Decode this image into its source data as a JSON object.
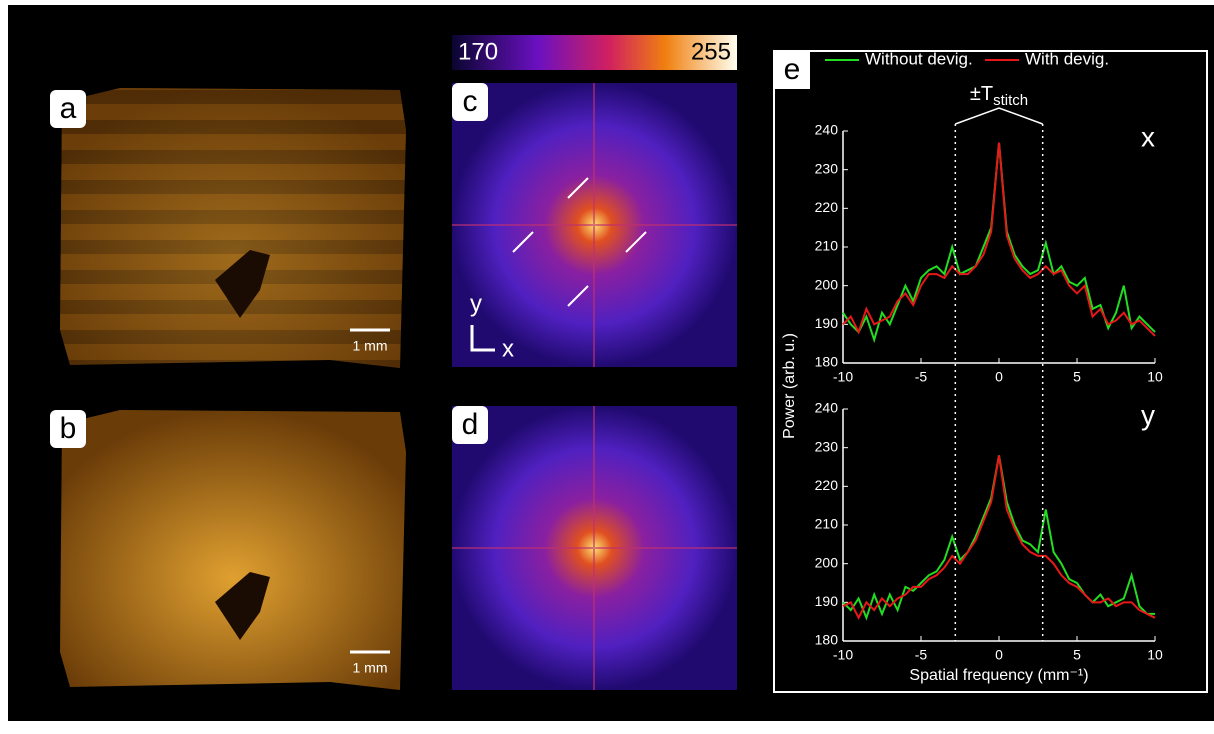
{
  "panel_labels": [
    "a",
    "b",
    "c",
    "d",
    "e"
  ],
  "scale_bars": [
    "1 mm",
    "1 mm"
  ],
  "axes_indicator": {
    "y": "y",
    "x": "x"
  },
  "colorbar": {
    "lim": [
      170,
      255
    ]
  },
  "stitch": {
    "text": "±T",
    "sub": "stitch",
    "positions": [
      -2.8,
      2.8
    ]
  },
  "ylabel": "Power (arb. u.)",
  "chart_data": [
    {
      "type": "line",
      "title": "x",
      "x": [
        -10,
        -9.5,
        -9,
        -8.5,
        -8,
        -7.5,
        -7,
        -6.5,
        -6,
        -5.5,
        -5,
        -4.5,
        -4,
        -3.5,
        -3,
        -2.5,
        -2,
        -1.5,
        -1,
        -0.5,
        0,
        0.5,
        1,
        1.5,
        2,
        2.5,
        3,
        3.5,
        4,
        4.5,
        5,
        5.5,
        6,
        6.5,
        7,
        7.5,
        8,
        8.5,
        9,
        9.5,
        10
      ],
      "series": [
        {
          "name": "Without devig.",
          "color": "#22dd22",
          "values": [
            193,
            190,
            188,
            192,
            186,
            193,
            190,
            195,
            200,
            196,
            202,
            204,
            205,
            203,
            210,
            203,
            204,
            205,
            210,
            215,
            237,
            214,
            208,
            205,
            203,
            204,
            211,
            203,
            205,
            201,
            200,
            202,
            194,
            195,
            189,
            193,
            200,
            189,
            192,
            190,
            188
          ]
        },
        {
          "name": "With devig.",
          "color": "#e81818",
          "values": [
            190,
            192,
            188,
            194,
            190,
            191,
            192,
            196,
            198,
            195,
            200,
            203,
            203,
            202,
            205,
            203,
            203,
            205,
            208,
            214,
            237,
            213,
            207,
            204,
            202,
            203,
            205,
            203,
            204,
            200,
            198,
            200,
            192,
            194,
            190,
            191,
            193,
            190,
            191,
            189,
            187
          ]
        }
      ],
      "xlim": [
        -10,
        10
      ],
      "ylim": [
        180,
        240
      ],
      "xticks": [
        -10,
        -5,
        0,
        5,
        10
      ],
      "yticks": [
        180,
        190,
        200,
        210,
        220,
        230,
        240
      ]
    },
    {
      "type": "line",
      "title": "y",
      "xlabel": "Spatial frequency (mm⁻¹)",
      "x": [
        -10,
        -9.5,
        -9,
        -8.5,
        -8,
        -7.5,
        -7,
        -6.5,
        -6,
        -5.5,
        -5,
        -4.5,
        -4,
        -3.5,
        -3,
        -2.5,
        -2,
        -1.5,
        -1,
        -0.5,
        0,
        0.5,
        1,
        1.5,
        2,
        2.5,
        3,
        3.5,
        4,
        4.5,
        5,
        5.5,
        6,
        6.5,
        7,
        7.5,
        8,
        8.5,
        9,
        9.5,
        10
      ],
      "series": [
        {
          "name": "Without devig.",
          "color": "#22dd22",
          "values": [
            190,
            188,
            191,
            186,
            192,
            187,
            192,
            188,
            194,
            193,
            195,
            197,
            198,
            201,
            207,
            201,
            203,
            207,
            212,
            217,
            228,
            216,
            210,
            206,
            205,
            203,
            214,
            203,
            200,
            196,
            195,
            192,
            190,
            192,
            189,
            190,
            191,
            197,
            189,
            187,
            187
          ]
        },
        {
          "name": "With devig.",
          "color": "#e81818",
          "values": [
            189,
            190,
            186,
            190,
            188,
            191,
            189,
            191,
            192,
            194,
            194,
            196,
            197,
            199,
            202,
            200,
            203,
            206,
            211,
            216,
            228,
            214,
            209,
            205,
            203,
            202,
            202,
            200,
            197,
            195,
            194,
            192,
            190,
            190,
            191,
            189,
            190,
            190,
            188,
            187,
            186
          ]
        }
      ],
      "xlim": [
        -10,
        10
      ],
      "ylim": [
        180,
        240
      ],
      "xticks": [
        -10,
        -5,
        0,
        5,
        10
      ],
      "yticks": [
        180,
        190,
        200,
        210,
        220,
        230,
        240
      ]
    }
  ]
}
